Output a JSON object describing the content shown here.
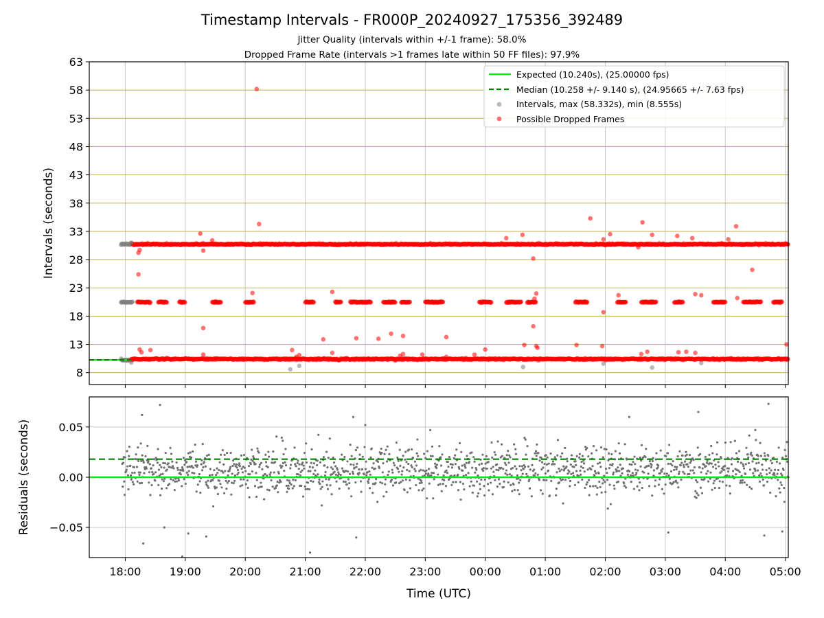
{
  "title": "Timestamp Intervals - FR000P_20240927_175356_392489",
  "subtitle_lines": [
    "Jitter Quality (intervals within +/-1 frame): 58.0%",
    "Dropped Frame Rate (intervals >1 frames late within 50 FF files): 97.9%"
  ],
  "colors": {
    "expected": "#00ee00",
    "median": "#008000",
    "intervals": "#808080",
    "dropped": "#ff0000",
    "hgrid_top": "#c8b460",
    "grid": "#c8c8c8"
  },
  "chart_data": [
    {
      "type": "scatter",
      "panel": "intervals",
      "xlabel": "",
      "ylabel": "Intervals (seconds)",
      "x_range_hours": [
        17.4,
        29.05
      ],
      "ylim": [
        5.9,
        63
      ],
      "yticks": [
        8,
        13,
        18,
        23,
        28,
        33,
        38,
        43,
        48,
        53,
        58,
        63
      ],
      "legend_position": "top-right",
      "legend": [
        {
          "label": "Expected (10.240s), (25.00000 fps)",
          "style": "solid-line",
          "color": "#00ee00"
        },
        {
          "label": "Median (10.258 +/- 9.140 s), (24.95665 +/- 7.63 fps)",
          "style": "dashed-line",
          "color": "#008000"
        },
        {
          "label": "Intervals, max (58.332s), min (8.555s)",
          "style": "dot",
          "color": "#808080"
        },
        {
          "label": "Possible Dropped Frames",
          "style": "dot",
          "color": "#ff0000"
        }
      ],
      "expected_interval": 10.24,
      "median_interval": 10.258,
      "bands": [
        {
          "name": "Intervals",
          "y": 10.24,
          "x_start": 17.93,
          "x_end": 18.12
        },
        {
          "name": "Intervals",
          "y": 20.48,
          "x_start": 17.93,
          "x_end": 18.12
        },
        {
          "name": "Intervals",
          "y": 30.72,
          "x_start": 17.93,
          "x_end": 18.12
        },
        {
          "name": "Possible Dropped Frames",
          "y": 10.4,
          "x_start": 18.1,
          "x_end": 29.05
        },
        {
          "name": "Possible Dropped Frames",
          "y": 30.72,
          "x_start": 18.12,
          "x_end": 29.05
        }
      ],
      "band_20s_segments": [
        [
          18.2,
          18.42
        ],
        [
          18.55,
          18.7
        ],
        [
          18.9,
          19.0
        ],
        [
          19.45,
          19.6
        ],
        [
          20.0,
          20.15
        ],
        [
          21.0,
          21.15
        ],
        [
          21.5,
          21.6
        ],
        [
          21.75,
          22.1
        ],
        [
          22.3,
          22.5
        ],
        [
          22.6,
          22.75
        ],
        [
          23.0,
          23.3
        ],
        [
          23.9,
          24.1
        ],
        [
          24.35,
          24.6
        ],
        [
          24.7,
          24.85
        ],
        [
          25.5,
          25.7
        ],
        [
          26.2,
          26.35
        ],
        [
          26.6,
          26.85
        ],
        [
          27.15,
          27.3
        ],
        [
          27.8,
          28.0
        ],
        [
          28.3,
          28.6
        ],
        [
          28.8,
          28.95
        ]
      ],
      "outliers": [
        {
          "x": 18.22,
          "y": 29.2,
          "type": "dropped"
        },
        {
          "x": 18.24,
          "y": 29.7,
          "type": "dropped"
        },
        {
          "x": 18.22,
          "y": 25.4,
          "type": "dropped"
        },
        {
          "x": 18.24,
          "y": 12.1,
          "type": "dropped"
        },
        {
          "x": 18.27,
          "y": 11.6,
          "type": "dropped"
        },
        {
          "x": 18.42,
          "y": 12.0,
          "type": "dropped"
        },
        {
          "x": 19.25,
          "y": 32.6,
          "type": "dropped"
        },
        {
          "x": 19.3,
          "y": 29.6,
          "type": "dropped"
        },
        {
          "x": 19.3,
          "y": 15.9,
          "type": "dropped"
        },
        {
          "x": 19.3,
          "y": 11.2,
          "type": "dropped"
        },
        {
          "x": 19.45,
          "y": 31.4,
          "type": "dropped"
        },
        {
          "x": 20.12,
          "y": 22.1,
          "type": "dropped"
        },
        {
          "x": 20.19,
          "y": 58.2,
          "type": "dropped"
        },
        {
          "x": 20.23,
          "y": 34.3,
          "type": "dropped"
        },
        {
          "x": 20.78,
          "y": 12.0,
          "type": "dropped"
        },
        {
          "x": 20.85,
          "y": 10.8,
          "type": "dropped"
        },
        {
          "x": 20.9,
          "y": 11.1,
          "type": "dropped"
        },
        {
          "x": 21.3,
          "y": 13.9,
          "type": "dropped"
        },
        {
          "x": 21.45,
          "y": 22.3,
          "type": "dropped"
        },
        {
          "x": 21.45,
          "y": 11.5,
          "type": "dropped"
        },
        {
          "x": 21.85,
          "y": 14.1,
          "type": "dropped"
        },
        {
          "x": 22.22,
          "y": 14.0,
          "type": "dropped"
        },
        {
          "x": 22.43,
          "y": 14.9,
          "type": "dropped"
        },
        {
          "x": 22.58,
          "y": 11.0,
          "type": "dropped"
        },
        {
          "x": 22.63,
          "y": 14.5,
          "type": "dropped"
        },
        {
          "x": 22.63,
          "y": 11.3,
          "type": "dropped"
        },
        {
          "x": 22.95,
          "y": 11.2,
          "type": "dropped"
        },
        {
          "x": 23.35,
          "y": 14.3,
          "type": "dropped"
        },
        {
          "x": 23.35,
          "y": 10.8,
          "type": "dropped"
        },
        {
          "x": 23.82,
          "y": 11.2,
          "type": "dropped"
        },
        {
          "x": 24.0,
          "y": 12.1,
          "type": "dropped"
        },
        {
          "x": 24.35,
          "y": 31.8,
          "type": "dropped"
        },
        {
          "x": 24.62,
          "y": 32.4,
          "type": "dropped"
        },
        {
          "x": 24.65,
          "y": 12.9,
          "type": "dropped"
        },
        {
          "x": 24.8,
          "y": 28.2,
          "type": "dropped"
        },
        {
          "x": 24.8,
          "y": 16.2,
          "type": "dropped"
        },
        {
          "x": 24.82,
          "y": 21.1,
          "type": "dropped"
        },
        {
          "x": 24.85,
          "y": 22.0,
          "type": "dropped"
        },
        {
          "x": 24.85,
          "y": 12.7,
          "type": "dropped"
        },
        {
          "x": 24.87,
          "y": 12.4,
          "type": "dropped"
        },
        {
          "x": 25.52,
          "y": 12.9,
          "type": "dropped"
        },
        {
          "x": 25.75,
          "y": 35.3,
          "type": "dropped"
        },
        {
          "x": 25.97,
          "y": 31.6,
          "type": "dropped"
        },
        {
          "x": 25.97,
          "y": 18.7,
          "type": "dropped"
        },
        {
          "x": 25.95,
          "y": 12.7,
          "type": "dropped"
        },
        {
          "x": 26.08,
          "y": 32.5,
          "type": "dropped"
        },
        {
          "x": 26.22,
          "y": 21.7,
          "type": "dropped"
        },
        {
          "x": 26.55,
          "y": 30.2,
          "type": "dropped"
        },
        {
          "x": 26.6,
          "y": 11.3,
          "type": "dropped"
        },
        {
          "x": 26.62,
          "y": 34.6,
          "type": "dropped"
        },
        {
          "x": 26.7,
          "y": 11.7,
          "type": "dropped"
        },
        {
          "x": 26.78,
          "y": 32.4,
          "type": "dropped"
        },
        {
          "x": 27.2,
          "y": 32.2,
          "type": "dropped"
        },
        {
          "x": 27.22,
          "y": 11.6,
          "type": "dropped"
        },
        {
          "x": 27.35,
          "y": 11.7,
          "type": "dropped"
        },
        {
          "x": 27.45,
          "y": 31.8,
          "type": "dropped"
        },
        {
          "x": 27.5,
          "y": 21.9,
          "type": "dropped"
        },
        {
          "x": 27.5,
          "y": 11.5,
          "type": "dropped"
        },
        {
          "x": 27.6,
          "y": 21.7,
          "type": "dropped"
        },
        {
          "x": 28.05,
          "y": 31.6,
          "type": "dropped"
        },
        {
          "x": 28.18,
          "y": 33.9,
          "type": "dropped"
        },
        {
          "x": 28.2,
          "y": 21.2,
          "type": "dropped"
        },
        {
          "x": 28.45,
          "y": 26.2,
          "type": "dropped"
        },
        {
          "x": 29.02,
          "y": 13.0,
          "type": "dropped"
        },
        {
          "x": 18.1,
          "y": 31.0,
          "type": "interval"
        },
        {
          "x": 18.1,
          "y": 9.8,
          "type": "interval"
        },
        {
          "x": 20.75,
          "y": 8.6,
          "type": "interval"
        },
        {
          "x": 20.9,
          "y": 9.2,
          "type": "interval"
        },
        {
          "x": 24.63,
          "y": 9.0,
          "type": "interval"
        },
        {
          "x": 25.97,
          "y": 9.6,
          "type": "interval"
        },
        {
          "x": 26.78,
          "y": 8.9,
          "type": "interval"
        },
        {
          "x": 27.6,
          "y": 9.7,
          "type": "interval"
        }
      ]
    },
    {
      "type": "scatter",
      "panel": "residuals",
      "xlabel": "Time (UTC)",
      "ylabel": "Residuals (seconds)",
      "x_range_hours": [
        17.4,
        29.05
      ],
      "ylim": [
        -0.08,
        0.08
      ],
      "yticks": [
        -0.05,
        0.0,
        0.05
      ],
      "ytick_labels": [
        "−0.05",
        "0.00",
        "0.05"
      ],
      "zero_line": 0.0,
      "median_residual": 0.018,
      "residual_mean": 0.007,
      "residual_spread": 0.012,
      "residual_count": 1400,
      "residual_x_range": [
        17.95,
        29.05
      ],
      "residual_extremes": [
        {
          "x": 18.58,
          "y": 0.072
        },
        {
          "x": 28.72,
          "y": 0.073
        },
        {
          "x": 18.3,
          "y": -0.066
        },
        {
          "x": 18.95,
          "y": -0.079
        },
        {
          "x": 21.08,
          "y": -0.075
        },
        {
          "x": 18.65,
          "y": -0.05
        },
        {
          "x": 19.05,
          "y": -0.056
        },
        {
          "x": 19.35,
          "y": -0.059
        },
        {
          "x": 21.85,
          "y": -0.06
        },
        {
          "x": 27.05,
          "y": -0.055
        },
        {
          "x": 28.65,
          "y": -0.058
        },
        {
          "x": 28.95,
          "y": -0.054
        },
        {
          "x": 21.8,
          "y": 0.06
        },
        {
          "x": 22.0,
          "y": 0.052
        },
        {
          "x": 27.55,
          "y": 0.065
        },
        {
          "x": 18.28,
          "y": 0.062
        },
        {
          "x": 26.4,
          "y": 0.06
        },
        {
          "x": 28.5,
          "y": 0.047
        }
      ]
    }
  ],
  "x_ticks": [
    "18:00",
    "19:00",
    "20:00",
    "21:00",
    "22:00",
    "23:00",
    "00:00",
    "01:00",
    "02:00",
    "03:00",
    "04:00",
    "05:00"
  ],
  "x_tick_hours": [
    18,
    19,
    20,
    21,
    22,
    23,
    24,
    25,
    26,
    27,
    28,
    29
  ]
}
